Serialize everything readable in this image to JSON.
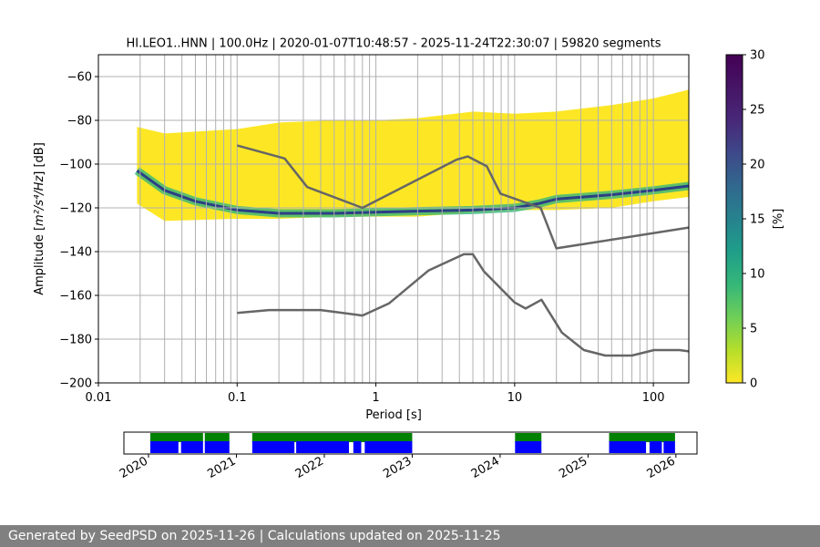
{
  "chart_data": [
    {
      "type": "heatmap",
      "title": "HI.LEO1..HNN | 100.0Hz | 2020-01-07T10:48:57 - 2025-11-24T22:30:07 | 59820 segments",
      "xlabel": "Period [s]",
      "ylabel_main": "Amplitude [",
      "ylabel_units": "m²/s⁴/Hz",
      "ylabel_tail": "] [dB]",
      "x_scale": "log",
      "xlim": [
        0.01,
        180
      ],
      "ylim": [
        -200,
        -50
      ],
      "x_ticks": [
        0.01,
        0.1,
        1,
        10,
        100
      ],
      "x_tick_labels": [
        "0.01",
        "0.1",
        "1",
        "10",
        "100"
      ],
      "y_ticks": [
        -200,
        -180,
        -160,
        -140,
        -120,
        -100,
        -80,
        -60
      ],
      "y_tick_labels": [
        "−200",
        "−180",
        "−160",
        "−140",
        "−120",
        "−100",
        "−80",
        "−60"
      ],
      "grid": true,
      "colormap": "viridis_r",
      "colorbar": {
        "label": "[%]",
        "range": [
          0,
          30
        ],
        "ticks": [
          0,
          5,
          10,
          15,
          20,
          25,
          30
        ],
        "tick_labels": [
          "0",
          "5",
          "10",
          "15",
          "20",
          "25",
          "30"
        ]
      },
      "pdf_envelope": {
        "period": [
          0.019,
          0.03,
          0.1,
          0.2,
          0.5,
          1,
          2,
          5,
          10,
          20,
          50,
          100,
          180
        ],
        "upper_db": [
          -83,
          -86,
          -84,
          -81,
          -80,
          -80,
          -79,
          -76,
          -77,
          -76,
          -73,
          -70,
          -66
        ],
        "lower_db": [
          -118,
          -126,
          -125,
          -125,
          -124,
          -124,
          -124,
          -122,
          -121,
          -121,
          -120,
          -117,
          -115
        ]
      },
      "pdf_mode": {
        "period": [
          0.019,
          0.03,
          0.05,
          0.1,
          0.2,
          0.5,
          1,
          2,
          5,
          10,
          15,
          20,
          50,
          100,
          180
        ],
        "db": [
          -103,
          -112,
          -117,
          -121,
          -122.5,
          -122.5,
          -122,
          -121.5,
          -121,
          -120,
          -118,
          -116,
          -114,
          -112,
          -110
        ]
      },
      "reference_curves": [
        {
          "color": "#666666",
          "period": [
            0.1,
            0.22,
            0.32,
            0.8,
            3.8,
            4.6,
            6.3,
            7.9,
            15.4,
            20,
            180
          ],
          "db": [
            -91.5,
            -97.4,
            -110.5,
            -120,
            -98,
            -96.5,
            -101,
            -113.5,
            -120,
            -138.5,
            -129
          ]
        },
        {
          "color": "#666666",
          "period": [
            0.1,
            0.17,
            0.4,
            0.8,
            1.24,
            2.4,
            4.3,
            5,
            6,
            10,
            12,
            15.6,
            21.9,
            31.6,
            45,
            70,
            101,
            154,
            180
          ],
          "db": [
            -168,
            -166.7,
            -166.7,
            -169.2,
            -163.7,
            -148.6,
            -141.2,
            -141.2,
            -149,
            -163.2,
            -166,
            -162,
            -177,
            -185,
            -187.5,
            -187.5,
            -185,
            -185,
            -185.6
          ]
        }
      ]
    },
    {
      "type": "timeline",
      "x_ticks": [
        2020,
        2021,
        2022,
        2023,
        2024,
        2025,
        2026
      ],
      "x_tick_labels": [
        "2020",
        "2021",
        "2022",
        "2023",
        "2024",
        "2025",
        "2026"
      ],
      "xlim": [
        2019.72,
        2026.24
      ],
      "coverage_color": "#0000ff",
      "processed_color": "#008000",
      "coverage_spans": [
        [
          2020.02,
          2020.34
        ],
        [
          2020.37,
          2020.62
        ],
        [
          2020.64,
          2020.92
        ],
        [
          2021.18,
          2021.66
        ],
        [
          2021.68,
          2022.28
        ],
        [
          2022.33,
          2022.42
        ],
        [
          2022.46,
          2023.0
        ],
        [
          2024.17,
          2024.47
        ],
        [
          2025.24,
          2025.66
        ],
        [
          2025.7,
          2025.84
        ],
        [
          2025.86,
          2025.99
        ]
      ],
      "processed_spans": [
        [
          2020.02,
          2020.62
        ],
        [
          2020.64,
          2020.92
        ],
        [
          2021.18,
          2023.0
        ],
        [
          2024.17,
          2024.47
        ],
        [
          2025.24,
          2025.99
        ]
      ]
    }
  ],
  "footer": {
    "text": "Generated by SeedPSD on 2025-11-26 | Calculations updated on 2025-11-25"
  }
}
